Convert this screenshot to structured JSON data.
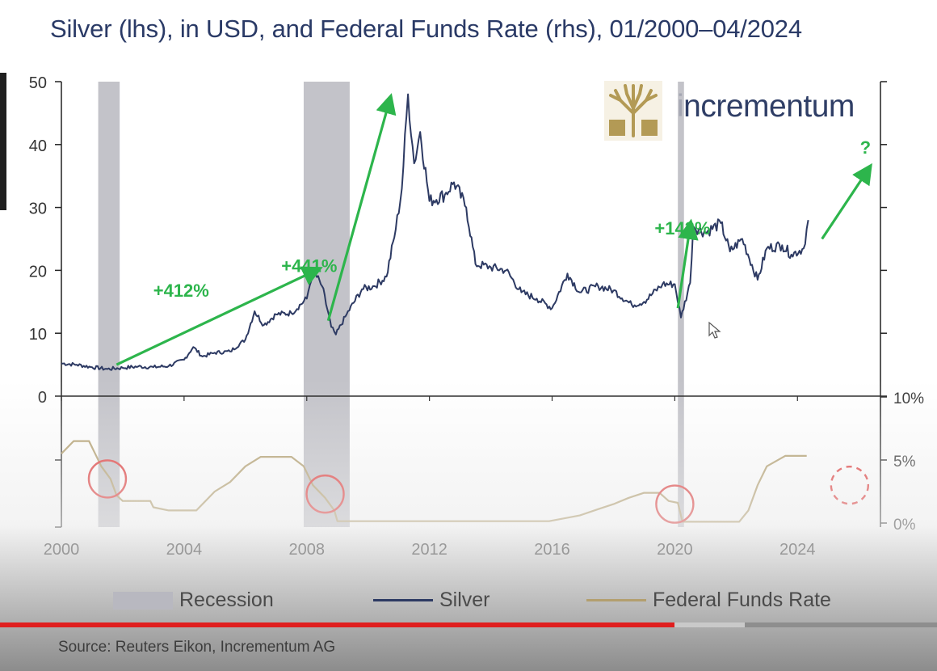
{
  "title": "Silver (lhs), in USD, and Federal Funds Rate (rhs), 01/2000–04/2024",
  "source": "Source: Reuters Eikon, Incrementum AG",
  "logo": {
    "text": "incrementum",
    "icon": "tree-logo-icon"
  },
  "legend": {
    "recession": "Recession",
    "silver": "Silver",
    "fed": "Federal Funds Rate"
  },
  "colors": {
    "title": "#2a3a66",
    "silver": "#2d3a63",
    "fed": "#b39f6e",
    "recession": "#b8b8c0",
    "arrow": "#2db54c",
    "circle": "#e03b3b",
    "progress_played": "#e01e1e"
  },
  "annotations": [
    {
      "text": "+412%",
      "from": [
        2001.8,
        5
      ],
      "to": [
        2008.3,
        20
      ]
    },
    {
      "text": "+441%",
      "from": [
        2008.7,
        12
      ],
      "to": [
        2010.7,
        47
      ]
    },
    {
      "text": "+143%",
      "from": [
        2020.1,
        14
      ],
      "to": [
        2020.5,
        27
      ]
    },
    {
      "text": "?",
      "from": [
        2024.8,
        25
      ],
      "to": [
        2026.3,
        36
      ]
    }
  ],
  "circles": [
    {
      "x": 2001.5,
      "y": 3.5,
      "dashed": false
    },
    {
      "x": 2008.6,
      "y": 2.3,
      "dashed": false
    },
    {
      "x": 2020.0,
      "y": 1.5,
      "dashed": false
    },
    {
      "x": 2025.7,
      "y": 3.0,
      "dashed": true
    }
  ],
  "progress": {
    "played": 0.72,
    "buffered_to": 0.795
  },
  "chart_data": {
    "type": "line",
    "x_ticks": [
      "2000",
      "2004",
      "2008",
      "2012",
      "2016",
      "2020",
      "2024"
    ],
    "xlim": [
      2000,
      2026.6
    ],
    "silver_axis": {
      "ylim": [
        0,
        50
      ],
      "ticks": [
        "0",
        "10",
        "20",
        "30",
        "40",
        "50"
      ]
    },
    "fed_axis": {
      "ylim": [
        0,
        10
      ],
      "ticks": [
        "0%",
        "5%",
        "10%"
      ]
    },
    "recessions": [
      [
        2001.2,
        2001.9
      ],
      [
        2007.9,
        2009.4
      ],
      [
        2020.1,
        2020.3
      ]
    ],
    "series": [
      {
        "name": "Silver",
        "axis": "left",
        "points": [
          [
            2000.0,
            5.2
          ],
          [
            2000.5,
            5.0
          ],
          [
            2001.0,
            4.6
          ],
          [
            2001.5,
            4.3
          ],
          [
            2002.0,
            4.5
          ],
          [
            2002.5,
            4.7
          ],
          [
            2003.0,
            4.6
          ],
          [
            2003.5,
            4.8
          ],
          [
            2004.0,
            5.8
          ],
          [
            2004.3,
            7.8
          ],
          [
            2004.6,
            6.3
          ],
          [
            2005.0,
            6.9
          ],
          [
            2005.5,
            7.1
          ],
          [
            2006.0,
            9.0
          ],
          [
            2006.3,
            13.5
          ],
          [
            2006.6,
            11.3
          ],
          [
            2007.0,
            13.0
          ],
          [
            2007.5,
            13.2
          ],
          [
            2008.0,
            15.5
          ],
          [
            2008.2,
            20.0
          ],
          [
            2008.5,
            17.5
          ],
          [
            2008.8,
            11.0
          ],
          [
            2008.95,
            9.8
          ],
          [
            2009.3,
            13.0
          ],
          [
            2009.8,
            17.0
          ],
          [
            2010.2,
            17.5
          ],
          [
            2010.6,
            19.0
          ],
          [
            2010.9,
            26.5
          ],
          [
            2011.1,
            33.0
          ],
          [
            2011.3,
            48.0
          ],
          [
            2011.5,
            37.0
          ],
          [
            2011.7,
            42.0
          ],
          [
            2012.0,
            31.0
          ],
          [
            2012.5,
            32.0
          ],
          [
            2012.8,
            34.0
          ],
          [
            2013.2,
            30.0
          ],
          [
            2013.5,
            21.0
          ],
          [
            2014.0,
            20.5
          ],
          [
            2014.5,
            20.0
          ],
          [
            2015.0,
            16.5
          ],
          [
            2015.5,
            15.5
          ],
          [
            2016.0,
            14.0
          ],
          [
            2016.5,
            19.5
          ],
          [
            2016.9,
            16.5
          ],
          [
            2017.5,
            17.5
          ],
          [
            2018.0,
            16.8
          ],
          [
            2018.6,
            14.5
          ],
          [
            2019.0,
            15.0
          ],
          [
            2019.6,
            17.8
          ],
          [
            2020.0,
            17.8
          ],
          [
            2020.2,
            12.5
          ],
          [
            2020.5,
            18.0
          ],
          [
            2020.6,
            27.0
          ],
          [
            2021.0,
            26.0
          ],
          [
            2021.5,
            27.5
          ],
          [
            2021.8,
            23.0
          ],
          [
            2022.2,
            25.0
          ],
          [
            2022.7,
            18.5
          ],
          [
            2023.0,
            23.5
          ],
          [
            2023.5,
            24.0
          ],
          [
            2023.8,
            22.5
          ],
          [
            2024.2,
            23.5
          ],
          [
            2024.35,
            28.0
          ]
        ]
      },
      {
        "name": "Federal Funds Rate",
        "axis": "right",
        "points": [
          [
            2000.0,
            5.5
          ],
          [
            2000.4,
            6.5
          ],
          [
            2000.9,
            6.5
          ],
          [
            2001.1,
            5.5
          ],
          [
            2001.3,
            4.5
          ],
          [
            2001.6,
            3.5
          ],
          [
            2001.8,
            2.2
          ],
          [
            2002.0,
            1.75
          ],
          [
            2002.9,
            1.75
          ],
          [
            2003.0,
            1.25
          ],
          [
            2003.5,
            1.0
          ],
          [
            2004.4,
            1.0
          ],
          [
            2005.0,
            2.5
          ],
          [
            2005.5,
            3.25
          ],
          [
            2006.0,
            4.5
          ],
          [
            2006.5,
            5.25
          ],
          [
            2007.5,
            5.25
          ],
          [
            2007.9,
            4.5
          ],
          [
            2008.2,
            3.0
          ],
          [
            2008.6,
            2.0
          ],
          [
            2008.9,
            1.0
          ],
          [
            2009.0,
            0.15
          ],
          [
            2015.9,
            0.15
          ],
          [
            2016.9,
            0.6
          ],
          [
            2017.5,
            1.1
          ],
          [
            2018.0,
            1.5
          ],
          [
            2018.5,
            2.0
          ],
          [
            2019.0,
            2.4
          ],
          [
            2019.5,
            2.4
          ],
          [
            2019.8,
            1.75
          ],
          [
            2020.1,
            1.6
          ],
          [
            2020.25,
            0.1
          ],
          [
            2022.1,
            0.1
          ],
          [
            2022.4,
            1.0
          ],
          [
            2022.7,
            3.0
          ],
          [
            2023.0,
            4.5
          ],
          [
            2023.6,
            5.33
          ],
          [
            2024.3,
            5.33
          ]
        ]
      }
    ]
  }
}
